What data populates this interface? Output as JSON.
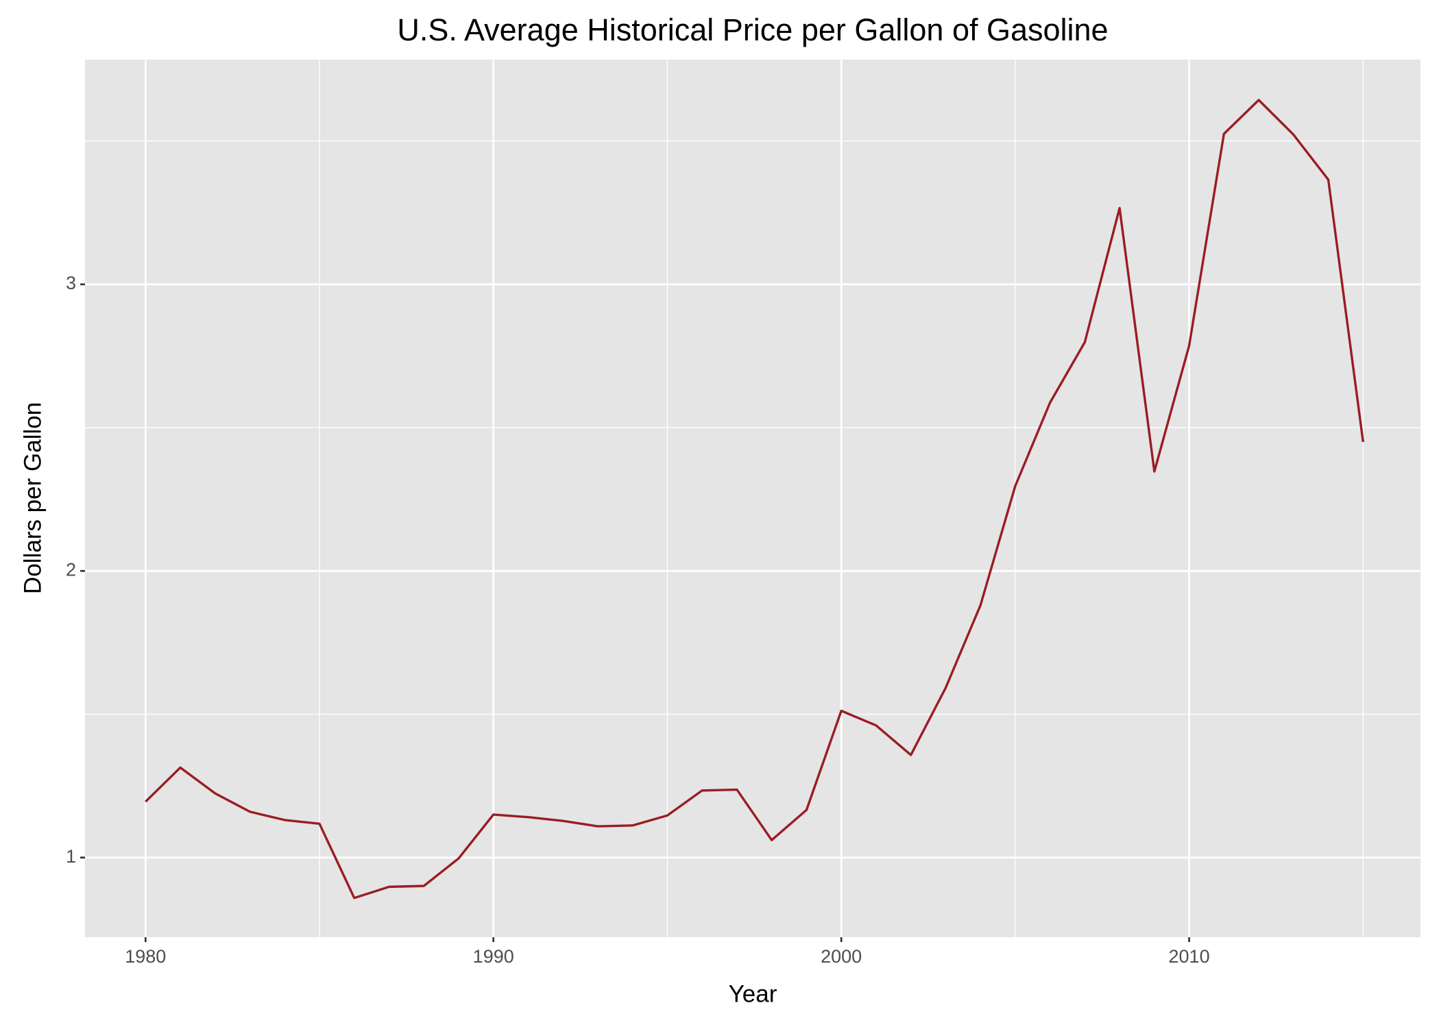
{
  "chart_data": {
    "type": "line",
    "title": "U.S. Average Historical Price per Gallon of Gasoline",
    "x_label": "Year",
    "y_label": "Dollars per Gallon",
    "x": [
      1980,
      1981,
      1982,
      1983,
      1984,
      1985,
      1986,
      1987,
      1988,
      1989,
      1990,
      1991,
      1992,
      1993,
      1994,
      1995,
      1996,
      1997,
      1998,
      1999,
      2000,
      2001,
      2002,
      2003,
      2004,
      2005,
      2006,
      2007,
      2008,
      2009,
      2010,
      2011,
      2012,
      2013,
      2014,
      2015
    ],
    "series": [
      {
        "color": "#9b1c24",
        "values": [
          1.195,
          1.314,
          1.224,
          1.16,
          1.131,
          1.118,
          0.859,
          0.898,
          0.901,
          0.997,
          1.15,
          1.141,
          1.128,
          1.109,
          1.112,
          1.147,
          1.234,
          1.237,
          1.061,
          1.166,
          1.512,
          1.461,
          1.358,
          1.592,
          1.88,
          2.296,
          2.587,
          2.798,
          3.266,
          2.347,
          2.786,
          3.525,
          3.643,
          3.522,
          3.365,
          2.45
        ]
      }
    ],
    "xlim": [
      1978.26,
      2016.65
    ],
    "ylim": [
      0.722,
      3.784
    ],
    "xticks": [
      1980,
      1990,
      2000,
      2010
    ],
    "yticks": [
      1,
      2,
      3
    ],
    "x_minor_grid": [
      1985,
      1995,
      2005,
      2015
    ],
    "y_minor_grid": [
      1.5,
      2.5,
      3.5
    ],
    "grid": true
  }
}
